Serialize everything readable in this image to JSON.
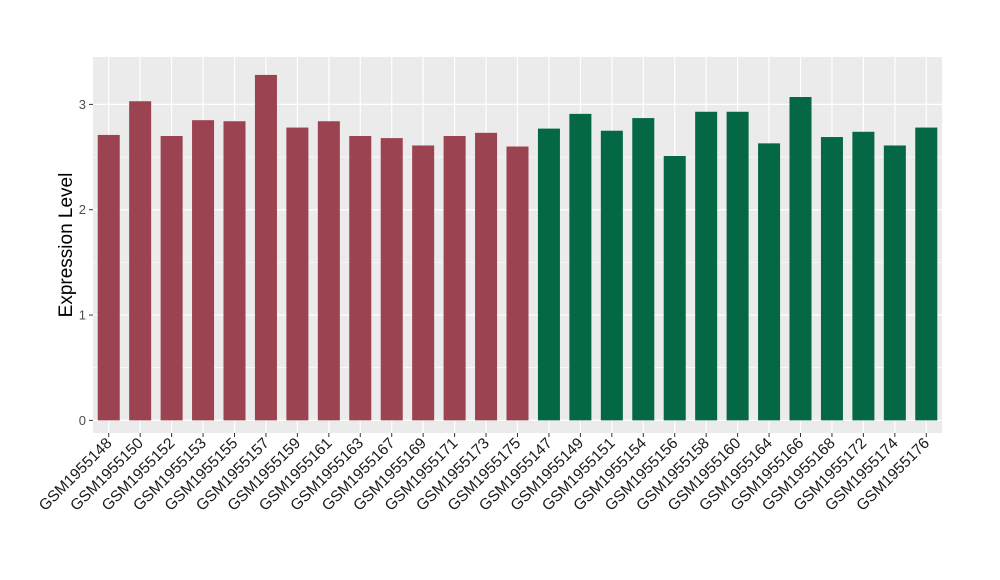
{
  "chart_data": {
    "type": "bar",
    "title": "",
    "xlabel": "",
    "ylabel": "Expression Level",
    "ylim": [
      -0.12,
      3.45
    ],
    "yticks": [
      0,
      1,
      2,
      3
    ],
    "grid": true,
    "legend": "none",
    "categories": [
      "GSM1955148",
      "GSM1955150",
      "GSM1955152",
      "GSM1955153",
      "GSM1955155",
      "GSM1955157",
      "GSM1955159",
      "GSM1955161",
      "GSM1955163",
      "GSM1955167",
      "GSM1955169",
      "GSM1955171",
      "GSM1955173",
      "GSM1955175",
      "GSM1955147",
      "GSM1955149",
      "GSM1955151",
      "GSM1955154",
      "GSM1955156",
      "GSM1955158",
      "GSM1955160",
      "GSM1955164",
      "GSM1955166",
      "GSM1955168",
      "GSM1955172",
      "GSM1955174",
      "GSM1955176"
    ],
    "values": [
      2.71,
      3.03,
      2.7,
      2.85,
      2.84,
      3.28,
      2.78,
      2.84,
      2.7,
      2.68,
      2.61,
      2.7,
      2.73,
      2.6,
      2.77,
      2.91,
      2.75,
      2.87,
      2.51,
      2.93,
      2.93,
      2.63,
      3.07,
      2.69,
      2.74,
      2.61,
      2.78
    ],
    "group_sizes": [
      14,
      13
    ],
    "colors": [
      "#9b4350",
      "#046845"
    ],
    "panel_background": "#ebebeb",
    "grid_color": "#ffffff"
  }
}
